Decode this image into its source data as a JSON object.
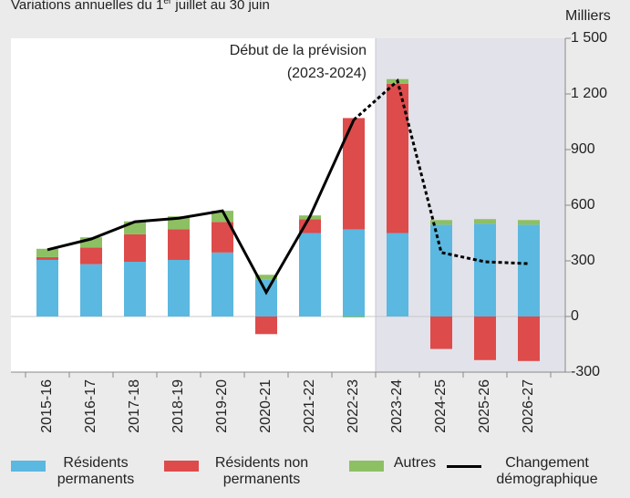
{
  "chart_data": {
    "type": "stacked-bar-line",
    "subtitle": [
      "Variations annuelles du 1",
      "er",
      " juillet au 30 juin"
    ],
    "y_unit": "Milliers",
    "annotation": [
      "Début de la prévision",
      "(2023-2024)"
    ],
    "forecast_start": "2023-24",
    "categories": [
      "2015-16",
      "2016-17",
      "2017-18",
      "2018-19",
      "2019-20",
      "2020-21",
      "2021-22",
      "2022-23",
      "2023-24",
      "2024-25",
      "2025-26",
      "2026-27"
    ],
    "series": [
      {
        "name": "Résidents permanents",
        "color": "#5bb8e0",
        "values": [
          305,
          282,
          295,
          305,
          345,
          200,
          450,
          470,
          450,
          495,
          500,
          495
        ]
      },
      {
        "name": "Résidents non permanents",
        "color": "#dd4b4b",
        "values": [
          15,
          90,
          148,
          165,
          165,
          -95,
          75,
          600,
          805,
          -175,
          -235,
          -240
        ]
      },
      {
        "name": "Autres",
        "color": "#8dc063",
        "values": [
          45,
          55,
          70,
          70,
          60,
          25,
          20,
          -5,
          25,
          25,
          25,
          25
        ]
      },
      {
        "name": "Changement démographique",
        "color": "#000000",
        "type": "line",
        "values": [
          360,
          418,
          511,
          530,
          570,
          130,
          540,
          1060,
          1270,
          345,
          295,
          285
        ]
      }
    ],
    "ylim": [
      -300,
      1500
    ],
    "yticks": [
      -300,
      0,
      300,
      600,
      900,
      {
        "value": 1200,
        "label": "1 200"
      },
      {
        "value": 1500,
        "label": "1 500"
      }
    ]
  }
}
